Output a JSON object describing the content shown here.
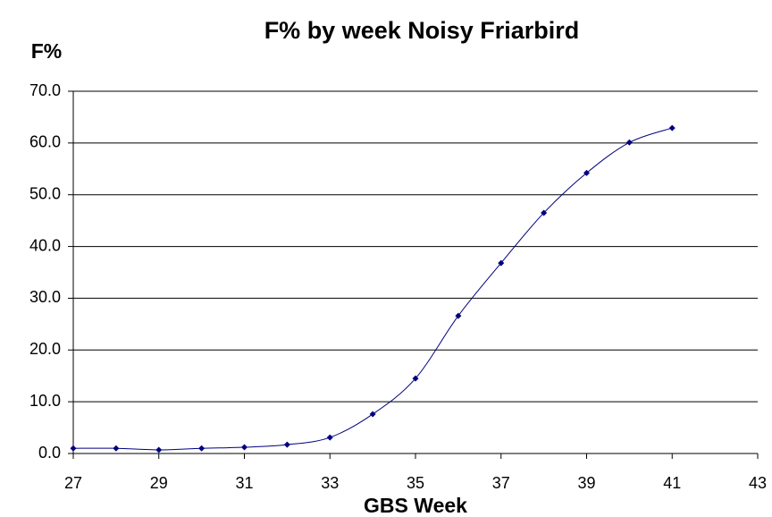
{
  "chart_data": {
    "type": "line",
    "title": "F% by week Noisy Friarbird",
    "x_label": "GBS Week",
    "y_label": "F%",
    "x": [
      27,
      28,
      29,
      30,
      31,
      32,
      33,
      34,
      35,
      36,
      37,
      38,
      39,
      40,
      41
    ],
    "series": [
      {
        "name": "F%",
        "color": "#000080",
        "values": [
          1.0,
          1.0,
          0.7,
          1.0,
          1.2,
          1.7,
          3.1,
          7.6,
          14.5,
          26.6,
          36.8,
          46.5,
          54.2,
          60.1,
          62.9
        ]
      }
    ],
    "xlim": [
      27,
      43
    ],
    "xticks": [
      27,
      29,
      31,
      33,
      35,
      37,
      39,
      41,
      43
    ],
    "ylim": [
      0,
      70
    ],
    "yticks": [
      {
        "value": 0,
        "label": "0.0"
      },
      {
        "value": 10,
        "label": "10.0"
      },
      {
        "value": 20,
        "label": "20.0"
      },
      {
        "value": 30,
        "label": "30.0"
      },
      {
        "value": 40,
        "label": "40.0"
      },
      {
        "value": 50,
        "label": "50.0"
      },
      {
        "value": 60,
        "label": "60.0"
      },
      {
        "value": 70,
        "label": "70.0"
      }
    ],
    "grid": true,
    "smooth": true
  }
}
